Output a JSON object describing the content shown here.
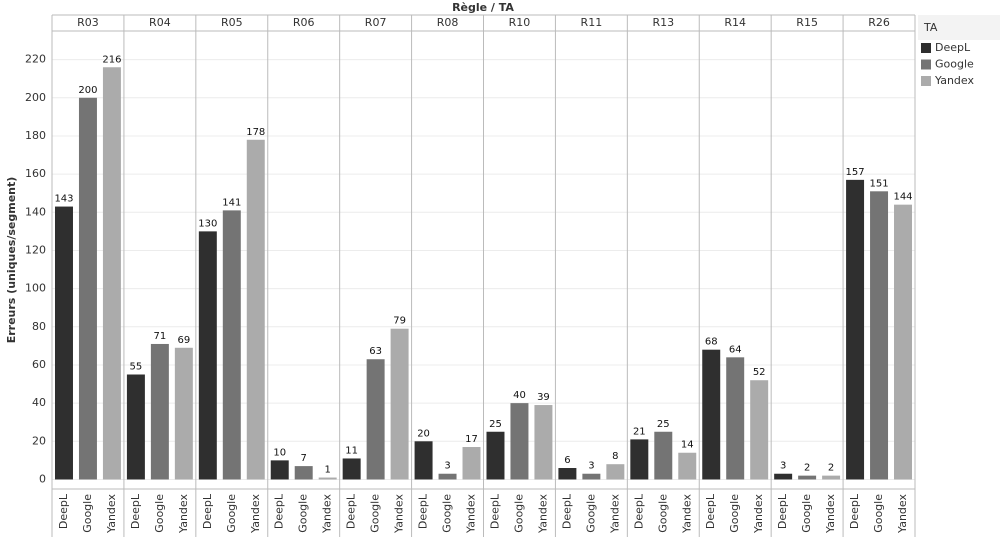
{
  "chart_data": {
    "type": "bar",
    "title": "Règle / TA",
    "y_label": "Erreurs (uniques/segment)",
    "legend_title": "TA",
    "legend_position": "right",
    "grid": true,
    "categories": [
      "R03",
      "R04",
      "R05",
      "R06",
      "R07",
      "R08",
      "R10",
      "R11",
      "R13",
      "R14",
      "R15",
      "R26"
    ],
    "series": [
      {
        "name": "DeepL",
        "color": "#2f2f2f",
        "values": [
          143,
          55,
          130,
          10,
          11,
          20,
          25,
          6,
          21,
          68,
          3,
          157
        ]
      },
      {
        "name": "Google",
        "color": "#747474",
        "values": [
          200,
          71,
          141,
          7,
          63,
          3,
          40,
          3,
          25,
          64,
          2,
          151
        ]
      },
      {
        "name": "Yandex",
        "color": "#ababab",
        "values": [
          216,
          69,
          178,
          1,
          79,
          17,
          39,
          8,
          14,
          52,
          2,
          144
        ]
      }
    ],
    "ylim": [
      -5,
      235
    ],
    "yticks": [
      0,
      20,
      40,
      60,
      80,
      100,
      120,
      140,
      160,
      180,
      200,
      220
    ]
  }
}
